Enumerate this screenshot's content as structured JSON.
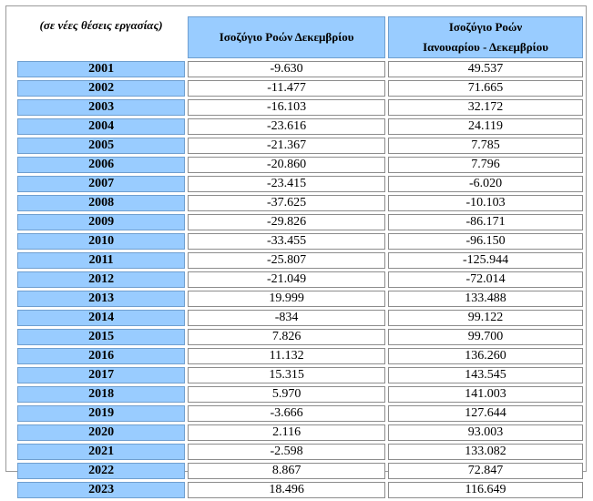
{
  "header": {
    "unit_label": "(σε νέες θέσεις εργασίας)",
    "col_dec": "Ισοζύγιο Ροών Δεκεμβρίου",
    "col_jandec_line1": "Ισοζύγιο Ροών",
    "col_jandec_line2": "Ιανουαρίου - Δεκεμβρίου"
  },
  "rows": [
    {
      "year": "2001",
      "dec": "-9.630",
      "jan_dec": "49.537"
    },
    {
      "year": "2002",
      "dec": "-11.477",
      "jan_dec": "71.665"
    },
    {
      "year": "2003",
      "dec": "-16.103",
      "jan_dec": "32.172"
    },
    {
      "year": "2004",
      "dec": "-23.616",
      "jan_dec": "24.119"
    },
    {
      "year": "2005",
      "dec": "-21.367",
      "jan_dec": "7.785"
    },
    {
      "year": "2006",
      "dec": "-20.860",
      "jan_dec": "7.796"
    },
    {
      "year": "2007",
      "dec": "-23.415",
      "jan_dec": "-6.020"
    },
    {
      "year": "2008",
      "dec": "-37.625",
      "jan_dec": "-10.103"
    },
    {
      "year": "2009",
      "dec": "-29.826",
      "jan_dec": "-86.171"
    },
    {
      "year": "2010",
      "dec": "-33.455",
      "jan_dec": "-96.150"
    },
    {
      "year": "2011",
      "dec": "-25.807",
      "jan_dec": "-125.944"
    },
    {
      "year": "2012",
      "dec": "-21.049",
      "jan_dec": "-72.014"
    },
    {
      "year": "2013",
      "dec": "19.999",
      "jan_dec": "133.488"
    },
    {
      "year": "2014",
      "dec": "-834",
      "jan_dec": "99.122"
    },
    {
      "year": "2015",
      "dec": "7.826",
      "jan_dec": "99.700"
    },
    {
      "year": "2016",
      "dec": "11.132",
      "jan_dec": "136.260"
    },
    {
      "year": "2017",
      "dec": "15.315",
      "jan_dec": "143.545"
    },
    {
      "year": "2018",
      "dec": "5.970",
      "jan_dec": "141.003"
    },
    {
      "year": "2019",
      "dec": "-3.666",
      "jan_dec": "127.644"
    },
    {
      "year": "2020",
      "dec": "2.116",
      "jan_dec": "93.003"
    },
    {
      "year": "2021",
      "dec": "-2.598",
      "jan_dec": "133.082"
    },
    {
      "year": "2022",
      "dec": "8.867",
      "jan_dec": "72.847"
    },
    {
      "year": "2023",
      "dec": "18.496",
      "jan_dec": "116.649"
    }
  ]
}
